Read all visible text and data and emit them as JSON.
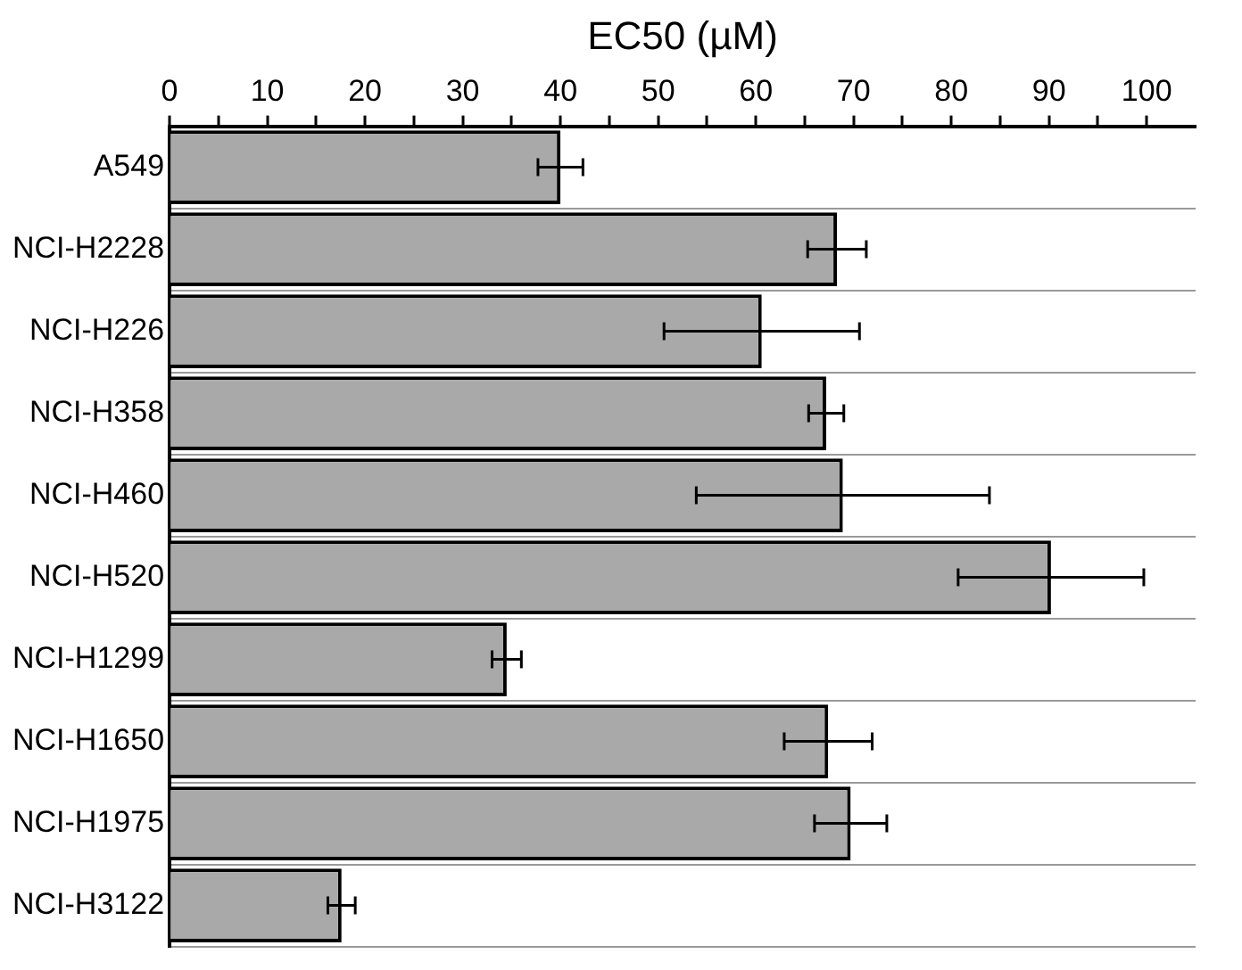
{
  "chart_data": {
    "type": "bar",
    "orientation": "horizontal",
    "xlabel": "EC50 (µM)",
    "categories": [
      "A549",
      "NCI-H2228",
      "NCI-H226",
      "NCI-H358",
      "NCI-H460",
      "NCI-H520",
      "NCI-H1299",
      "NCI-H1650",
      "NCI-H1975",
      "NCI-H3122"
    ],
    "values": [
      40.0,
      68.3,
      60.6,
      67.2,
      68.9,
      90.2,
      34.5,
      67.4,
      69.7,
      17.6
    ],
    "errors": [
      2.3,
      3,
      10,
      1.8,
      15,
      9.5,
      1.5,
      4.5,
      3.7,
      1.4
    ],
    "color": "#a9a9a9",
    "xlim": [
      0,
      105
    ],
    "xticks": [
      0,
      {
        "value": 5,
        "label": null
      },
      10,
      {
        "value": 15,
        "label": null
      },
      20,
      {
        "value": 25,
        "label": null
      },
      30,
      {
        "value": 35,
        "label": null
      },
      40,
      {
        "value": 45,
        "label": null
      },
      50,
      {
        "value": 55,
        "label": null
      },
      60,
      {
        "value": 65,
        "label": null
      },
      70,
      {
        "value": 75,
        "label": null
      },
      80,
      {
        "value": 85,
        "label": null
      },
      90,
      {
        "value": 95,
        "label": null
      },
      100
    ],
    "grid": "y",
    "legend": false
  }
}
